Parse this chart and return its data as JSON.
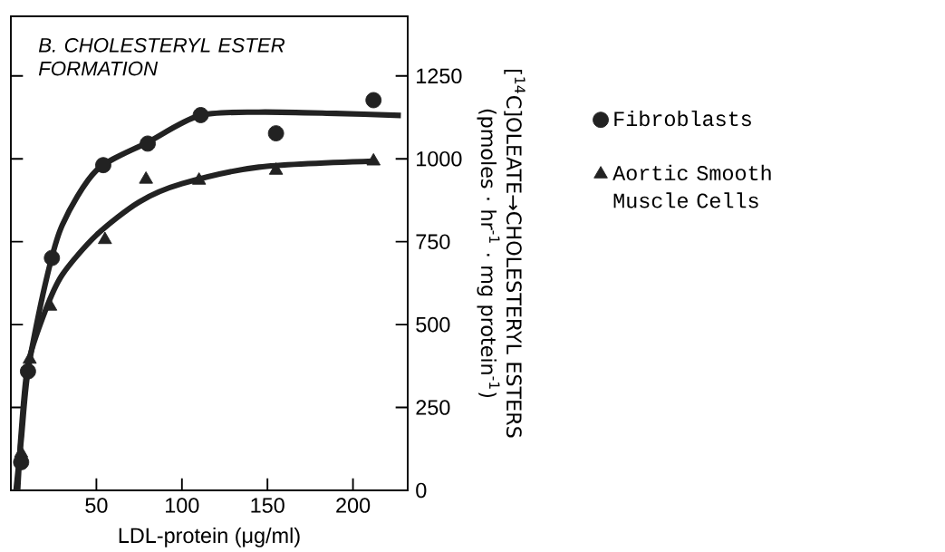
{
  "chart_data": {
    "type": "scatter",
    "title": "B. CHOLESTERYL ESTER FORMATION",
    "xlabel": "LDL-protein (μg/ml)",
    "ylabel": "[$^{14}$C]OLEATE→CHOLESTERYL ESTERS (pmoles · hr$^{-1}$ · mg protein$^{-1}$)",
    "xlim": [
      0,
      232
    ],
    "ylim": [
      0,
      1430
    ],
    "xticks": [
      50,
      100,
      150,
      200
    ],
    "yticks": [
      0,
      250,
      500,
      750,
      1000,
      1250
    ],
    "legend": "right",
    "grid": false,
    "series": [
      {
        "name": "Fibroblasts",
        "marker": "circle",
        "color": "#222222",
        "x": [
          6,
          10,
          24,
          54,
          80,
          111,
          155,
          212
        ],
        "values": [
          85,
          359,
          701,
          981,
          1046,
          1132,
          1077,
          1177
        ]
      },
      {
        "name": "Aortic Smooth Muscle Cells",
        "marker": "triangle",
        "color": "#222222",
        "x": [
          6,
          11,
          23,
          55,
          79,
          110,
          155,
          212
        ],
        "values": [
          112,
          395,
          555,
          756,
          938,
          935,
          965,
          993
        ]
      },
      {
        "type": "line",
        "marker": "none",
        "color": "#222222",
        "x": [
          3,
          6,
          10,
          20,
          30,
          50,
          80,
          110,
          145,
          190,
          228
        ],
        "values": [
          0,
          150,
          360,
          620,
          800,
          965,
          1050,
          1130,
          1141,
          1137,
          1131
        ]
      },
      {
        "type": "line",
        "marker": "none",
        "color": "#222222",
        "x": [
          4,
          6,
          10,
          20,
          30,
          50,
          75,
          100,
          145,
          212
        ],
        "values": [
          0,
          170,
          380,
          540,
          650,
          770,
          870,
          925,
          975,
          993
        ]
      }
    ]
  }
}
